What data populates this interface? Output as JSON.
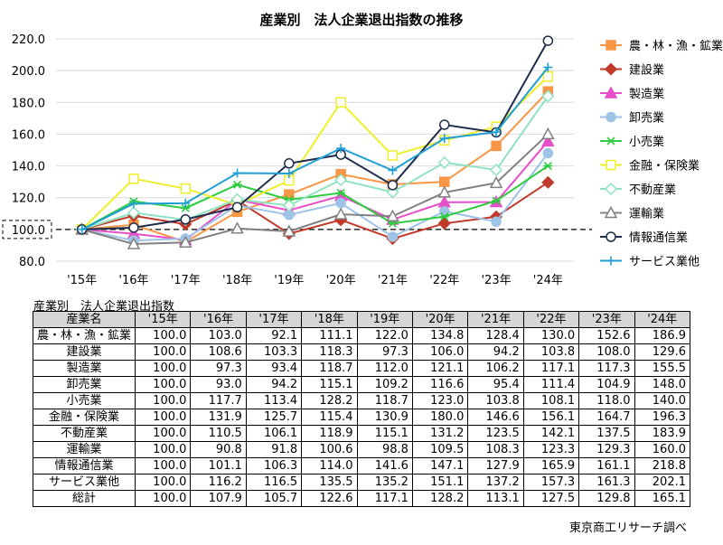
{
  "chart_data": {
    "type": "line",
    "title": "産業別　法人企業退出指数の推移",
    "categories": [
      "'15年",
      "'16年",
      "'17年",
      "'18年",
      "'19年",
      "'20年",
      "'21年",
      "'22年",
      "'23年",
      "'24年"
    ],
    "ylim": [
      80,
      220
    ],
    "yticks": [
      "80.0",
      "100.0",
      "120.0",
      "140.0",
      "160.0",
      "180.0",
      "200.0",
      "220.0"
    ],
    "baseline": 100,
    "baseline_label": "100.0",
    "grid": true,
    "legend_position": "right",
    "series": [
      {
        "name": "農・林・漁・鉱業",
        "color": "#f79646",
        "marker": "square",
        "values": [
          100.0,
          103.0,
          92.1,
          111.1,
          122.0,
          134.8,
          128.4,
          130.0,
          152.6,
          186.9
        ]
      },
      {
        "name": "建設業",
        "color": "#c0392b",
        "marker": "diamond",
        "values": [
          100.0,
          108.6,
          103.3,
          118.3,
          97.3,
          106.0,
          94.2,
          103.8,
          108.0,
          129.6
        ]
      },
      {
        "name": "製造業",
        "color": "#e84fc8",
        "marker": "triangle",
        "values": [
          100.0,
          97.3,
          93.4,
          118.7,
          112.0,
          121.1,
          106.2,
          117.1,
          117.3,
          155.5
        ]
      },
      {
        "name": "卸売業",
        "color": "#9dc3e6",
        "marker": "circle",
        "values": [
          100.0,
          93.0,
          94.2,
          115.1,
          109.2,
          116.6,
          95.4,
          111.4,
          104.9,
          148.0
        ]
      },
      {
        "name": "小売業",
        "color": "#2ecc40",
        "marker": "star",
        "values": [
          100.0,
          117.7,
          113.4,
          128.2,
          118.7,
          123.0,
          103.8,
          108.1,
          118.0,
          140.0
        ]
      },
      {
        "name": "金融・保険業",
        "color": "#eeee2a",
        "marker": "hollow-square",
        "values": [
          100.0,
          131.9,
          125.7,
          115.4,
          130.9,
          180.0,
          146.6,
          156.1,
          164.7,
          196.3
        ]
      },
      {
        "name": "不動産業",
        "color": "#8fe3c0",
        "marker": "hollow-diamond",
        "values": [
          100.0,
          110.5,
          106.1,
          118.9,
          115.1,
          131.2,
          123.5,
          142.1,
          137.5,
          183.9
        ]
      },
      {
        "name": "運輸業",
        "color": "#808080",
        "marker": "hollow-triangle",
        "values": [
          100.0,
          90.8,
          91.8,
          100.6,
          98.8,
          109.5,
          108.3,
          123.3,
          129.3,
          160.0
        ]
      },
      {
        "name": "情報通信業",
        "color": "#1f2d4d",
        "marker": "hollow-circle",
        "values": [
          100.0,
          101.1,
          106.3,
          114.0,
          141.6,
          147.1,
          127.9,
          165.9,
          161.1,
          218.8
        ]
      },
      {
        "name": "サービス業他",
        "color": "#1f9fd3",
        "marker": "plus",
        "values": [
          100.0,
          116.2,
          116.5,
          135.5,
          135.2,
          151.1,
          137.2,
          157.3,
          161.3,
          202.1
        ]
      }
    ]
  },
  "table": {
    "title": "産業別　法人企業退出指数",
    "header_name": "産業名",
    "years": [
      "'15年",
      "'16年",
      "'17年",
      "'18年",
      "'19年",
      "'20年",
      "'21年",
      "'22年",
      "'23年",
      "'24年"
    ],
    "rows": [
      {
        "name": "農・林・漁・鉱業",
        "values": [
          "100.0",
          "103.0",
          "92.1",
          "111.1",
          "122.0",
          "134.8",
          "128.4",
          "130.0",
          "152.6",
          "186.9"
        ]
      },
      {
        "name": "建設業",
        "values": [
          "100.0",
          "108.6",
          "103.3",
          "118.3",
          "97.3",
          "106.0",
          "94.2",
          "103.8",
          "108.0",
          "129.6"
        ]
      },
      {
        "name": "製造業",
        "values": [
          "100.0",
          "97.3",
          "93.4",
          "118.7",
          "112.0",
          "121.1",
          "106.2",
          "117.1",
          "117.3",
          "155.5"
        ]
      },
      {
        "name": "卸売業",
        "values": [
          "100.0",
          "93.0",
          "94.2",
          "115.1",
          "109.2",
          "116.6",
          "95.4",
          "111.4",
          "104.9",
          "148.0"
        ]
      },
      {
        "name": "小売業",
        "values": [
          "100.0",
          "117.7",
          "113.4",
          "128.2",
          "118.7",
          "123.0",
          "103.8",
          "108.1",
          "118.0",
          "140.0"
        ]
      },
      {
        "name": "金融・保険業",
        "values": [
          "100.0",
          "131.9",
          "125.7",
          "115.4",
          "130.9",
          "180.0",
          "146.6",
          "156.1",
          "164.7",
          "196.3"
        ]
      },
      {
        "name": "不動産業",
        "values": [
          "100.0",
          "110.5",
          "106.1",
          "118.9",
          "115.1",
          "131.2",
          "123.5",
          "142.1",
          "137.5",
          "183.9"
        ]
      },
      {
        "name": "運輸業",
        "values": [
          "100.0",
          "90.8",
          "91.8",
          "100.6",
          "98.8",
          "109.5",
          "108.3",
          "123.3",
          "129.3",
          "160.0"
        ]
      },
      {
        "name": "情報通信業",
        "values": [
          "100.0",
          "101.1",
          "106.3",
          "114.0",
          "141.6",
          "147.1",
          "127.9",
          "165.9",
          "161.1",
          "218.8"
        ]
      },
      {
        "name": "サービス業他",
        "values": [
          "100.0",
          "116.2",
          "116.5",
          "135.5",
          "135.2",
          "151.1",
          "137.2",
          "157.3",
          "161.3",
          "202.1"
        ]
      },
      {
        "name": "総計",
        "values": [
          "100.0",
          "107.9",
          "105.7",
          "122.6",
          "117.1",
          "128.2",
          "113.1",
          "127.5",
          "129.8",
          "165.1"
        ]
      }
    ]
  },
  "source": "東京商工リサーチ調べ"
}
